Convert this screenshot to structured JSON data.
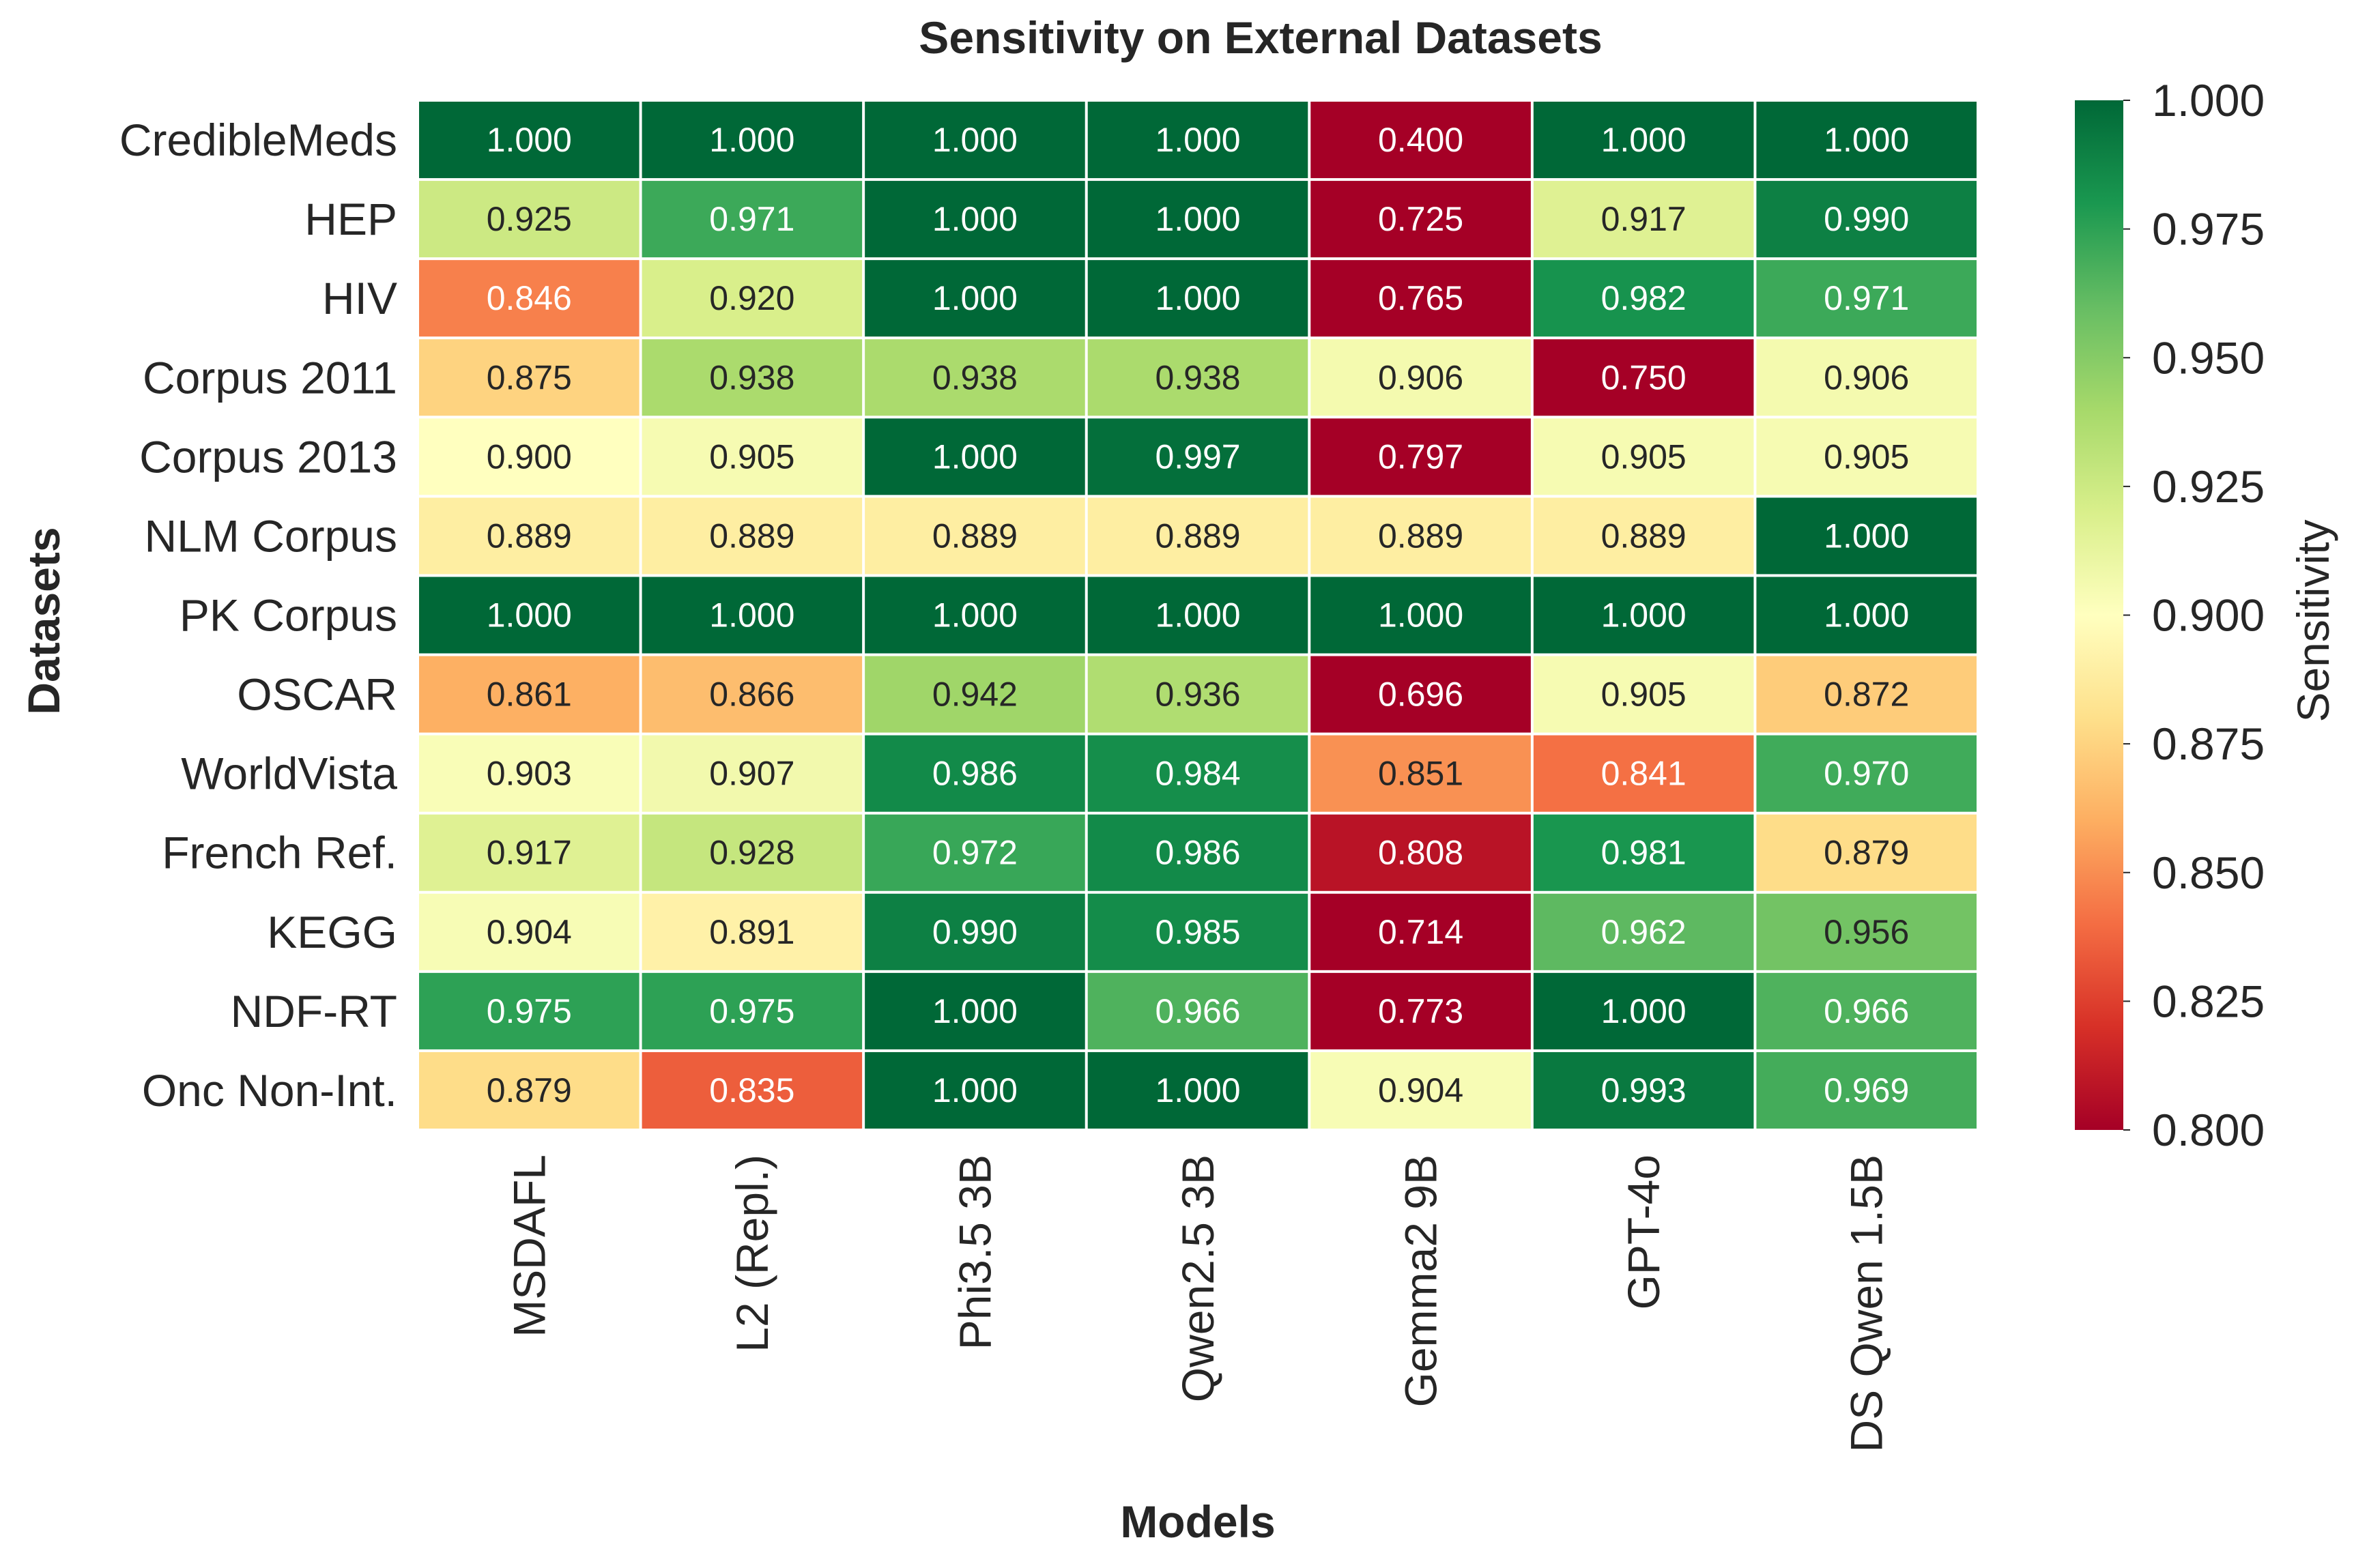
{
  "chart_data": {
    "type": "heatmap",
    "title": "Sensitivity on External Datasets",
    "xlabel": "Models",
    "ylabel": "Datasets",
    "x_categories": [
      "MSDAFL",
      "L2 (Repl.)",
      "Phi3.5 3B",
      "Qwen2.5 3B",
      "Gemma2 9B",
      "GPT-4o",
      "DS Qwen 1.5B"
    ],
    "y_categories": [
      "CredibleMeds",
      "HEP",
      "HIV",
      "Corpus 2011",
      "Corpus 2013",
      "NLM Corpus",
      "PK Corpus",
      "OSCAR",
      "WorldVista",
      "French Ref.",
      "KEGG",
      "NDF-RT",
      "Onc Non-Int."
    ],
    "values": [
      [
        1.0,
        1.0,
        1.0,
        1.0,
        0.4,
        1.0,
        1.0
      ],
      [
        0.925,
        0.971,
        1.0,
        1.0,
        0.725,
        0.917,
        0.99
      ],
      [
        0.846,
        0.92,
        1.0,
        1.0,
        0.765,
        0.982,
        0.971
      ],
      [
        0.875,
        0.938,
        0.938,
        0.938,
        0.906,
        0.75,
        0.906
      ],
      [
        0.9,
        0.905,
        1.0,
        0.997,
        0.797,
        0.905,
        0.905
      ],
      [
        0.889,
        0.889,
        0.889,
        0.889,
        0.889,
        0.889,
        1.0
      ],
      [
        1.0,
        1.0,
        1.0,
        1.0,
        1.0,
        1.0,
        1.0
      ],
      [
        0.861,
        0.866,
        0.942,
        0.936,
        0.696,
        0.905,
        0.872
      ],
      [
        0.903,
        0.907,
        0.986,
        0.984,
        0.851,
        0.841,
        0.97
      ],
      [
        0.917,
        0.928,
        0.972,
        0.986,
        0.808,
        0.981,
        0.879
      ],
      [
        0.904,
        0.891,
        0.99,
        0.985,
        0.714,
        0.962,
        0.956
      ],
      [
        0.975,
        0.975,
        1.0,
        0.966,
        0.773,
        1.0,
        0.966
      ],
      [
        0.879,
        0.835,
        1.0,
        1.0,
        0.904,
        0.993,
        0.969
      ]
    ],
    "value_format": "3 decimals",
    "colormap": "RdYlGn",
    "vmin": 0.8,
    "vmax": 1.0,
    "colorbar": {
      "label": "Sensitivity",
      "ticks": [
        "1.000",
        "0.975",
        "0.950",
        "0.925",
        "0.900",
        "0.875",
        "0.850",
        "0.825",
        "0.800"
      ],
      "placement": "right"
    },
    "grid": false,
    "cell_border_color": "#ffffff"
  }
}
